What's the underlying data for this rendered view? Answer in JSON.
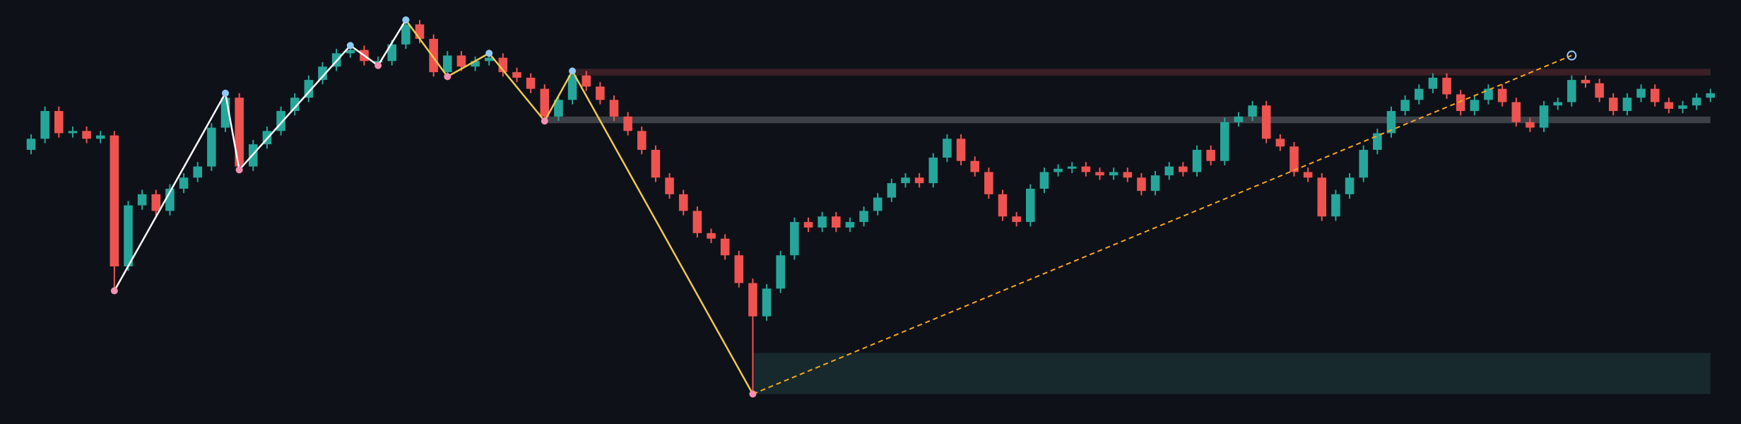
{
  "chart_data": {
    "type": "candlestick",
    "background": "#0e1118",
    "up_color": "#26a69a",
    "down_color": "#ef5350",
    "low_marker_color": "#f48fb1",
    "high_marker_color": "#90caf9",
    "xlim": [
      -2.24,
      123.2
    ],
    "ylim": [
      0,
      382
    ],
    "open": [
      247,
      257,
      282,
      262,
      264,
      257,
      260,
      142,
      197,
      207,
      192,
      212,
      222,
      232,
      267,
      294,
      232,
      252,
      264,
      282,
      294,
      310,
      322,
      334,
      337,
      327,
      327,
      342,
      360,
      347,
      317,
      332,
      322,
      327,
      330,
      317,
      312,
      302,
      277,
      292,
      314,
      304,
      292,
      277,
      264,
      247,
      222,
      207,
      192,
      172,
      167,
      152,
      127,
      97,
      122,
      152,
      182,
      177,
      187,
      177,
      182,
      192,
      204,
      217,
      222,
      217,
      240,
      257,
      237,
      227,
      207,
      187,
      182,
      212,
      227,
      230,
      232,
      227,
      224,
      227,
      222,
      210,
      224,
      232,
      227,
      247,
      237,
      272,
      277,
      287,
      257,
      250,
      227,
      222,
      187,
      207,
      222,
      247,
      262,
      282,
      292,
      302,
      312,
      297,
      282,
      292,
      302,
      290,
      272,
      267,
      287,
      290,
      310,
      307,
      294,
      282,
      294,
      302,
      290,
      284,
      287,
      294
    ],
    "high": [
      261,
      286,
      286,
      268,
      268,
      264,
      264,
      201,
      211,
      211,
      216,
      226,
      236,
      271,
      298,
      298,
      256,
      268,
      286,
      298,
      314,
      326,
      338,
      341,
      341,
      331,
      346,
      364,
      364,
      351,
      336,
      336,
      331,
      334,
      334,
      321,
      316,
      306,
      296,
      318,
      318,
      308,
      296,
      281,
      268,
      251,
      226,
      211,
      196,
      176,
      171,
      156,
      131,
      126,
      156,
      186,
      186,
      191,
      191,
      186,
      196,
      208,
      221,
      226,
      226,
      244,
      261,
      261,
      241,
      231,
      211,
      191,
      216,
      231,
      234,
      236,
      236,
      231,
      231,
      231,
      226,
      228,
      236,
      236,
      251,
      251,
      276,
      281,
      291,
      291,
      261,
      254,
      231,
      226,
      211,
      226,
      251,
      266,
      286,
      296,
      306,
      316,
      316,
      301,
      296,
      306,
      306,
      294,
      276,
      291,
      294,
      314,
      314,
      311,
      298,
      298,
      306,
      306,
      294,
      291,
      298,
      302
    ],
    "low": [
      243,
      253,
      258,
      258,
      253,
      253,
      120,
      138,
      193,
      188,
      188,
      208,
      218,
      228,
      263,
      228,
      228,
      248,
      260,
      278,
      290,
      306,
      318,
      330,
      323,
      323,
      323,
      338,
      343,
      313,
      313,
      318,
      318,
      323,
      313,
      308,
      298,
      273,
      273,
      288,
      300,
      288,
      273,
      260,
      243,
      218,
      203,
      188,
      168,
      163,
      148,
      123,
      27,
      93,
      118,
      148,
      173,
      173,
      173,
      173,
      178,
      188,
      200,
      213,
      213,
      213,
      236,
      233,
      223,
      203,
      183,
      178,
      178,
      208,
      223,
      226,
      223,
      220,
      220,
      218,
      206,
      206,
      220,
      223,
      223,
      233,
      233,
      268,
      273,
      253,
      246,
      223,
      218,
      183,
      183,
      203,
      218,
      243,
      258,
      278,
      288,
      298,
      293,
      278,
      278,
      288,
      286,
      268,
      263,
      263,
      283,
      286,
      303,
      290,
      278,
      278,
      290,
      286,
      280,
      280,
      283,
      290
    ],
    "close": [
      257,
      282,
      262,
      264,
      257,
      260,
      142,
      197,
      207,
      192,
      212,
      222,
      232,
      267,
      294,
      232,
      252,
      264,
      282,
      294,
      310,
      322,
      334,
      337,
      327,
      327,
      342,
      360,
      347,
      317,
      332,
      322,
      327,
      330,
      317,
      312,
      302,
      277,
      292,
      314,
      304,
      292,
      277,
      264,
      247,
      222,
      207,
      192,
      172,
      167,
      152,
      127,
      97,
      122,
      152,
      182,
      177,
      187,
      177,
      182,
      192,
      204,
      217,
      222,
      217,
      240,
      257,
      237,
      227,
      207,
      187,
      182,
      212,
      227,
      230,
      232,
      227,
      224,
      227,
      222,
      210,
      224,
      232,
      227,
      247,
      237,
      272,
      277,
      287,
      257,
      250,
      227,
      222,
      187,
      207,
      222,
      247,
      262,
      282,
      292,
      302,
      312,
      297,
      282,
      292,
      302,
      290,
      272,
      267,
      287,
      290,
      310,
      307,
      294,
      282,
      294,
      302,
      290,
      284,
      287,
      294,
      298
    ],
    "zones": [
      {
        "color": "#3a1f24",
        "x": [
          39,
          121
        ],
        "y": [
          314,
          320
        ]
      },
      {
        "color": "#3d4047",
        "x": [
          37,
          121
        ],
        "y": [
          271,
          277
        ]
      },
      {
        "color": "#17292c",
        "x": [
          52,
          121
        ],
        "y": [
          27,
          64
        ]
      }
    ],
    "lines": [
      {
        "color": "#ffffff",
        "dashed": false,
        "markers": true,
        "x": [
          6,
          14,
          15,
          23,
          25,
          27
        ],
        "y": [
          120,
          298,
          229,
          341,
          323,
          364
        ]
      },
      {
        "color": "#f2c94c",
        "dashed": false,
        "markers": true,
        "x": [
          27,
          30,
          33,
          37,
          39,
          52
        ],
        "y": [
          364,
          313,
          334,
          273,
          318,
          27
        ]
      },
      {
        "color": "#f5a623",
        "dashed": true,
        "markers": false,
        "x": [
          52,
          111
        ],
        "y": [
          27,
          332
        ]
      }
    ]
  }
}
